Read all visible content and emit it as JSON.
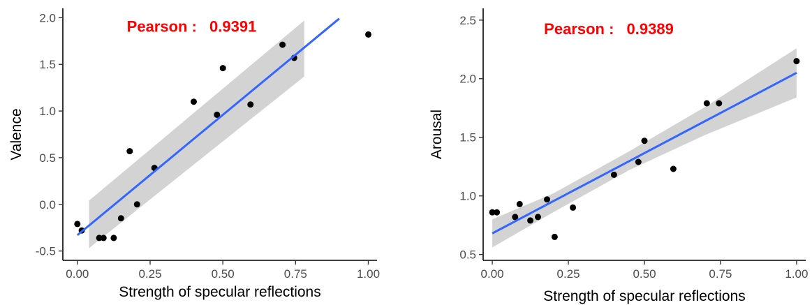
{
  "chart_data": [
    {
      "type": "scatter",
      "xlabel": "Strength of specular reflections",
      "ylabel": "Valence",
      "xlim": [
        -0.05,
        1.03
      ],
      "ylim": [
        -0.6,
        2.1
      ],
      "xticks": [
        0.0,
        0.25,
        0.5,
        0.75,
        1.0
      ],
      "xtick_labels": [
        "0.00",
        "0.25",
        "0.50",
        "0.75",
        "1.00"
      ],
      "yticks": [
        -0.5,
        0.0,
        0.5,
        1.0,
        1.5,
        2.0
      ],
      "ytick_labels": [
        "-0.5",
        "0.0",
        "0.5",
        "1.0",
        "1.5",
        "2.0"
      ],
      "annotation": {
        "label": "Pearson :",
        "value": "0.9391",
        "x": 0.17,
        "y": 1.85,
        "color": "#ff0000"
      },
      "points": [
        {
          "x": 0.0,
          "y": -0.21
        },
        {
          "x": 0.015,
          "y": -0.28
        },
        {
          "x": 0.075,
          "y": -0.36
        },
        {
          "x": 0.09,
          "y": -0.36
        },
        {
          "x": 0.125,
          "y": -0.36
        },
        {
          "x": 0.15,
          "y": -0.15
        },
        {
          "x": 0.18,
          "y": 0.57
        },
        {
          "x": 0.205,
          "y": 0.0
        },
        {
          "x": 0.265,
          "y": 0.39
        },
        {
          "x": 0.4,
          "y": 1.1
        },
        {
          "x": 0.48,
          "y": 0.96
        },
        {
          "x": 0.5,
          "y": 1.46
        },
        {
          "x": 0.595,
          "y": 1.07
        },
        {
          "x": 0.705,
          "y": 1.71
        },
        {
          "x": 0.745,
          "y": 1.57
        },
        {
          "x": 1.0,
          "y": 1.82
        }
      ],
      "fit": {
        "x": [
          0.0,
          0.9
        ],
        "y": [
          -0.33,
          1.99
        ]
      },
      "confidence_band": {
        "x": [
          0.04,
          0.78
        ],
        "upper": [
          0.04,
          1.97
        ],
        "lower": [
          -0.47,
          1.37
        ]
      },
      "point_color": "#000000",
      "fit_color": "#3366ff",
      "band_color": "#d3d3d3",
      "grid": false
    },
    {
      "type": "scatter",
      "xlabel": "Strength of specular reflections",
      "ylabel": "Arousal",
      "xlim": [
        -0.03,
        1.03
      ],
      "ylim": [
        0.45,
        2.6
      ],
      "xticks": [
        0.0,
        0.25,
        0.5,
        0.75,
        1.0
      ],
      "xtick_labels": [
        "0.00",
        "0.25",
        "0.50",
        "0.75",
        "1.00"
      ],
      "yticks": [
        0.5,
        1.0,
        1.5,
        2.0,
        2.5
      ],
      "ytick_labels": [
        "0.5",
        "1.0",
        "1.5",
        "2.0",
        "2.5"
      ],
      "annotation": {
        "label": "Pearson :",
        "value": "0.9389",
        "x": 0.17,
        "y": 2.38,
        "color": "#ff0000"
      },
      "points": [
        {
          "x": 0.0,
          "y": 0.86
        },
        {
          "x": 0.015,
          "y": 0.86
        },
        {
          "x": 0.075,
          "y": 0.82
        },
        {
          "x": 0.09,
          "y": 0.93
        },
        {
          "x": 0.125,
          "y": 0.79
        },
        {
          "x": 0.15,
          "y": 0.82
        },
        {
          "x": 0.18,
          "y": 0.97
        },
        {
          "x": 0.205,
          "y": 0.65
        },
        {
          "x": 0.265,
          "y": 0.9
        },
        {
          "x": 0.4,
          "y": 1.18
        },
        {
          "x": 0.48,
          "y": 1.29
        },
        {
          "x": 0.5,
          "y": 1.47
        },
        {
          "x": 0.595,
          "y": 1.23
        },
        {
          "x": 0.705,
          "y": 1.79
        },
        {
          "x": 0.745,
          "y": 1.79
        },
        {
          "x": 1.0,
          "y": 2.15
        }
      ],
      "fit": {
        "x": [
          0.0,
          1.0
        ],
        "y": [
          0.68,
          2.05
        ]
      },
      "confidence_band": {
        "x": [
          0.0,
          0.2,
          0.45,
          0.7,
          1.0
        ],
        "upper": [
          0.8,
          1.02,
          1.38,
          1.76,
          2.26
        ],
        "lower": [
          0.56,
          0.86,
          1.22,
          1.52,
          1.84
        ]
      },
      "point_color": "#000000",
      "fit_color": "#3366ff",
      "band_color": "#d3d3d3",
      "grid": false
    }
  ]
}
